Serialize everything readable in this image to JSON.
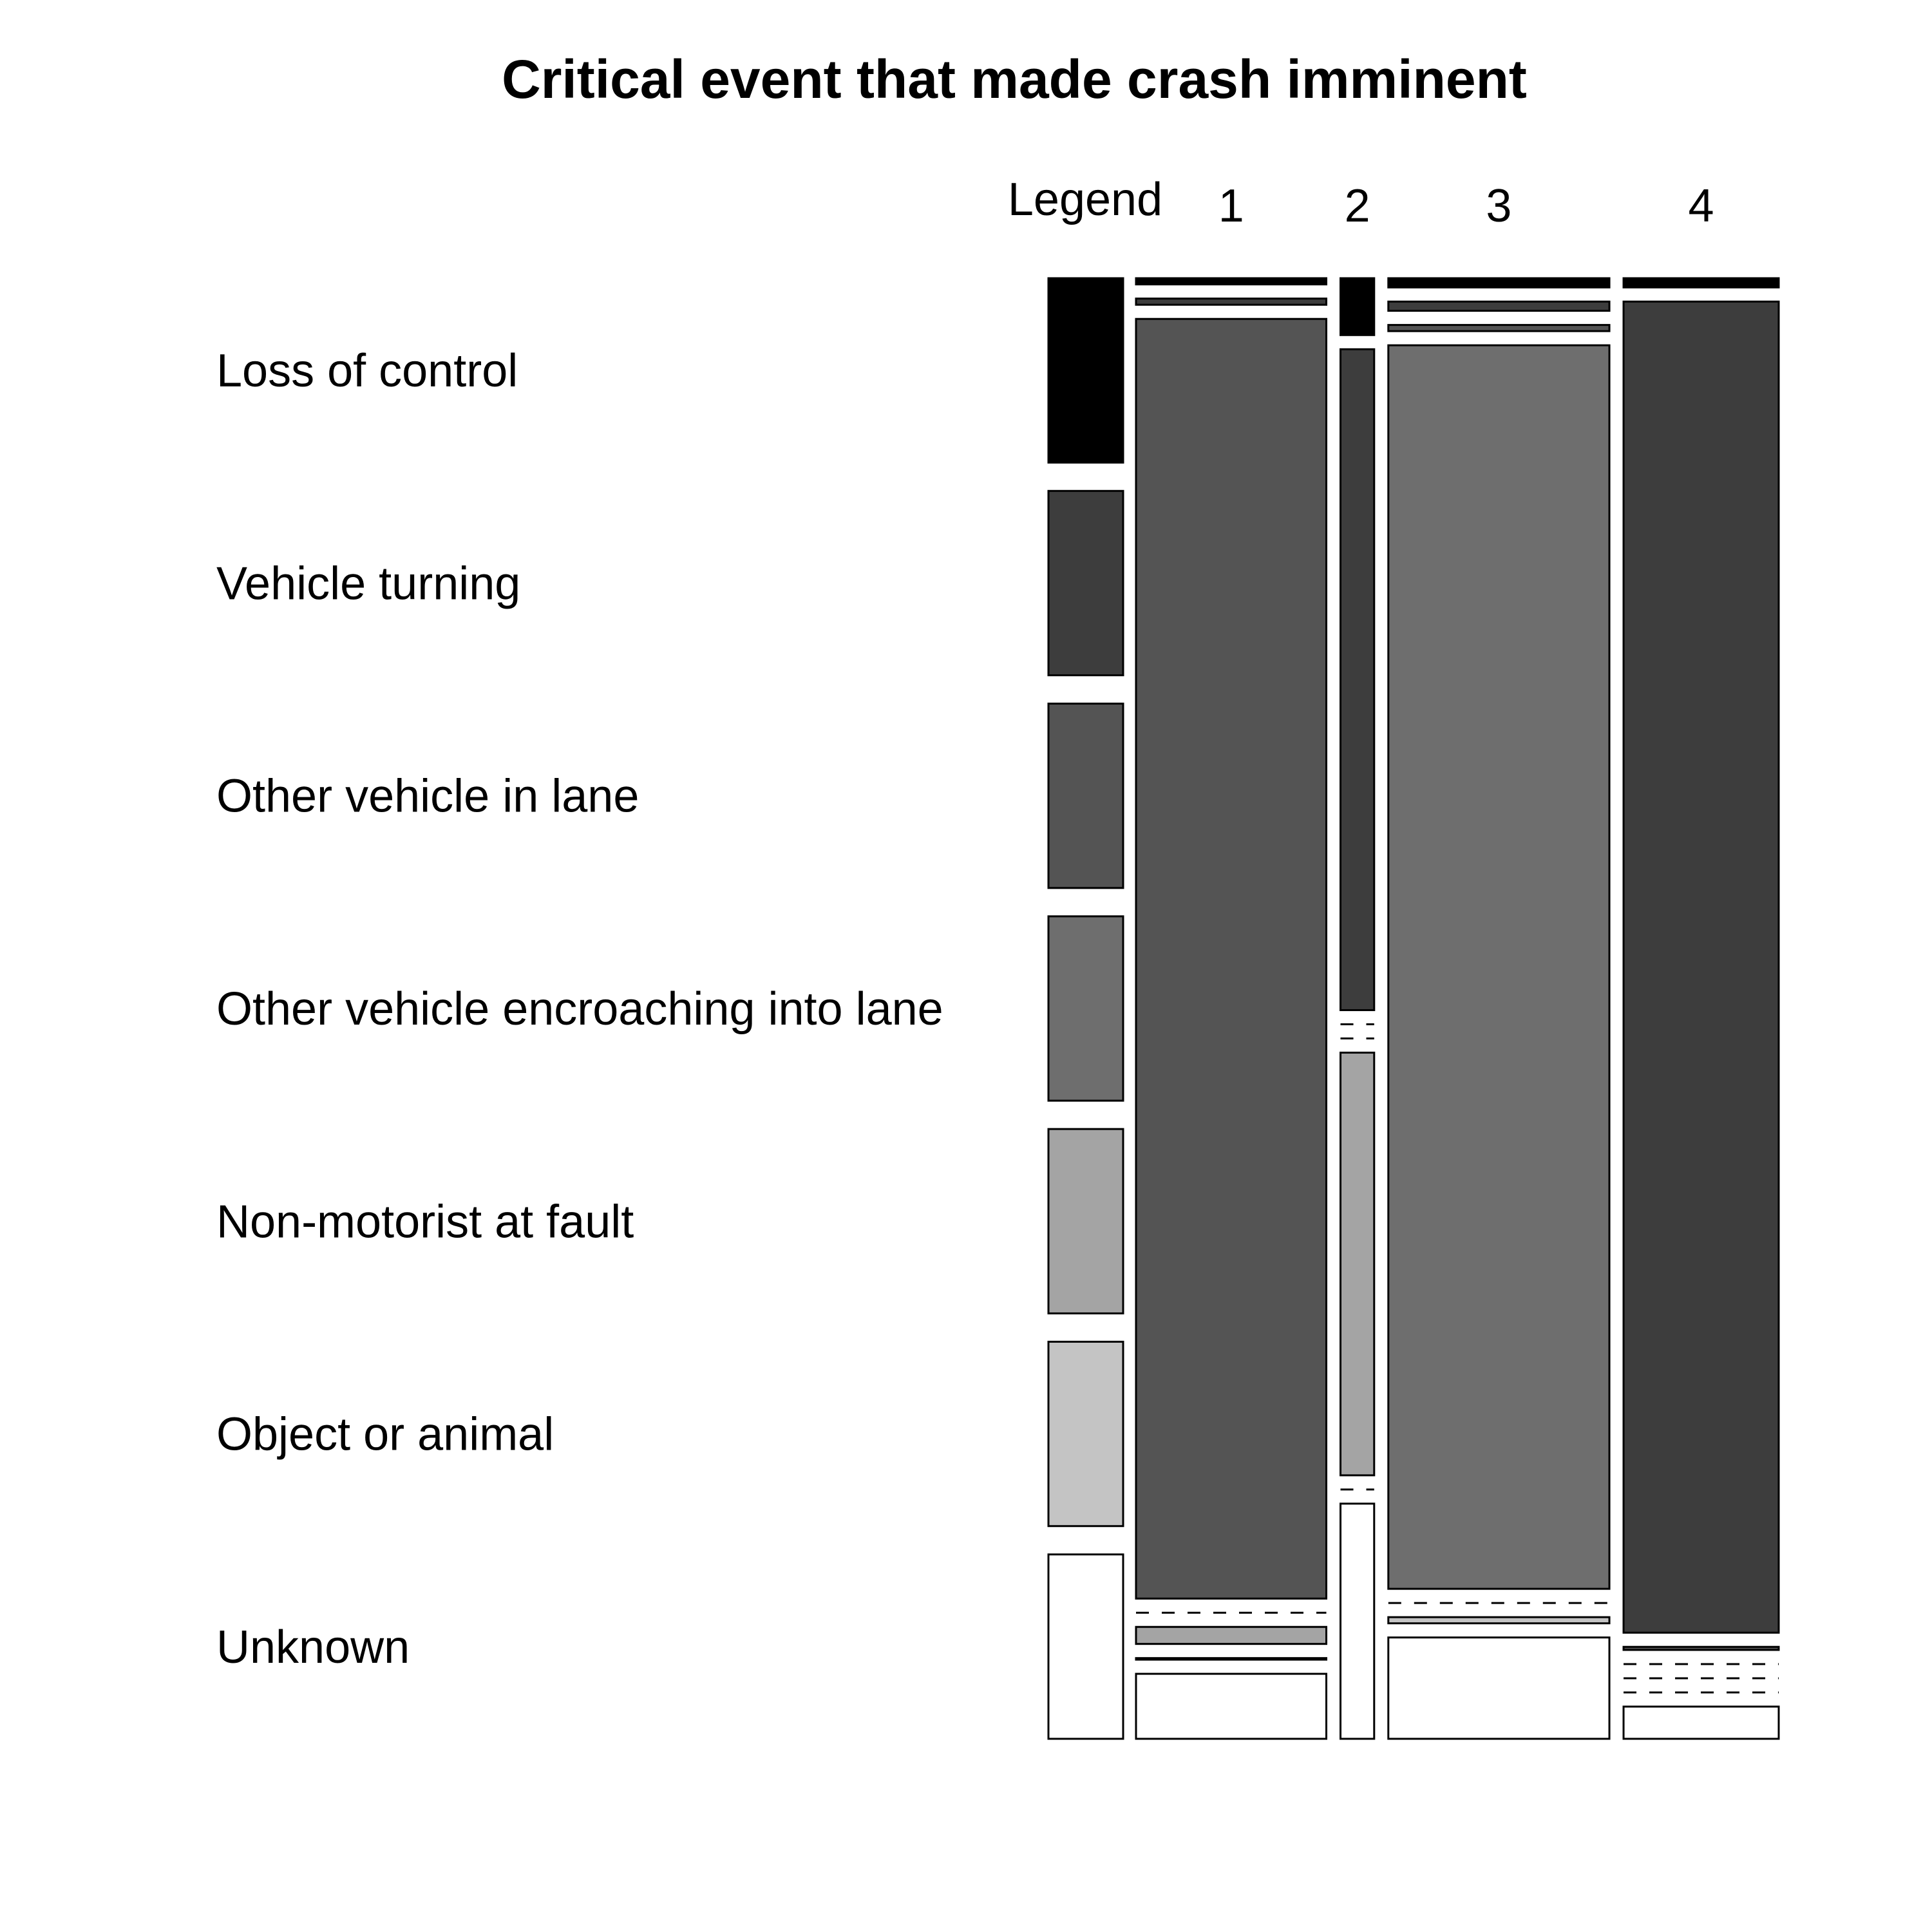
{
  "chart_data": {
    "type": "mosaic",
    "title": "Critical event that made crash imminent",
    "legend_header": "Legend",
    "categories": [
      "Loss of control",
      "Vehicle turning",
      "Other vehicle in lane",
      "Other vehicle encroaching into lane",
      "Non-motorist at fault",
      "Object or animal",
      "Unknown"
    ],
    "category_colors": [
      "#000000",
      "#3d3d3d",
      "#545454",
      "#6e6e6e",
      "#a4a4a4",
      "#c4c4c4",
      "#ffffff"
    ],
    "columns": [
      {
        "label": "1",
        "share": 0.26,
        "proportions": [
          0.004,
          0.004,
          0.827,
          0.0,
          0.011,
          0.001,
          0.042
        ]
      },
      {
        "label": "2",
        "share": 0.046,
        "proportions": [
          0.037,
          0.43,
          0.0,
          0.0,
          0.275,
          0.0,
          0.153
        ]
      },
      {
        "label": "3",
        "share": 0.302,
        "proportions": [
          0.006,
          0.006,
          0.004,
          0.81,
          0.0,
          0.004,
          0.066
        ]
      },
      {
        "label": "4",
        "share": 0.212,
        "proportions": [
          0.006,
          0.868,
          0.002,
          0.0,
          0.0,
          0.0,
          0.021
        ]
      }
    ]
  }
}
